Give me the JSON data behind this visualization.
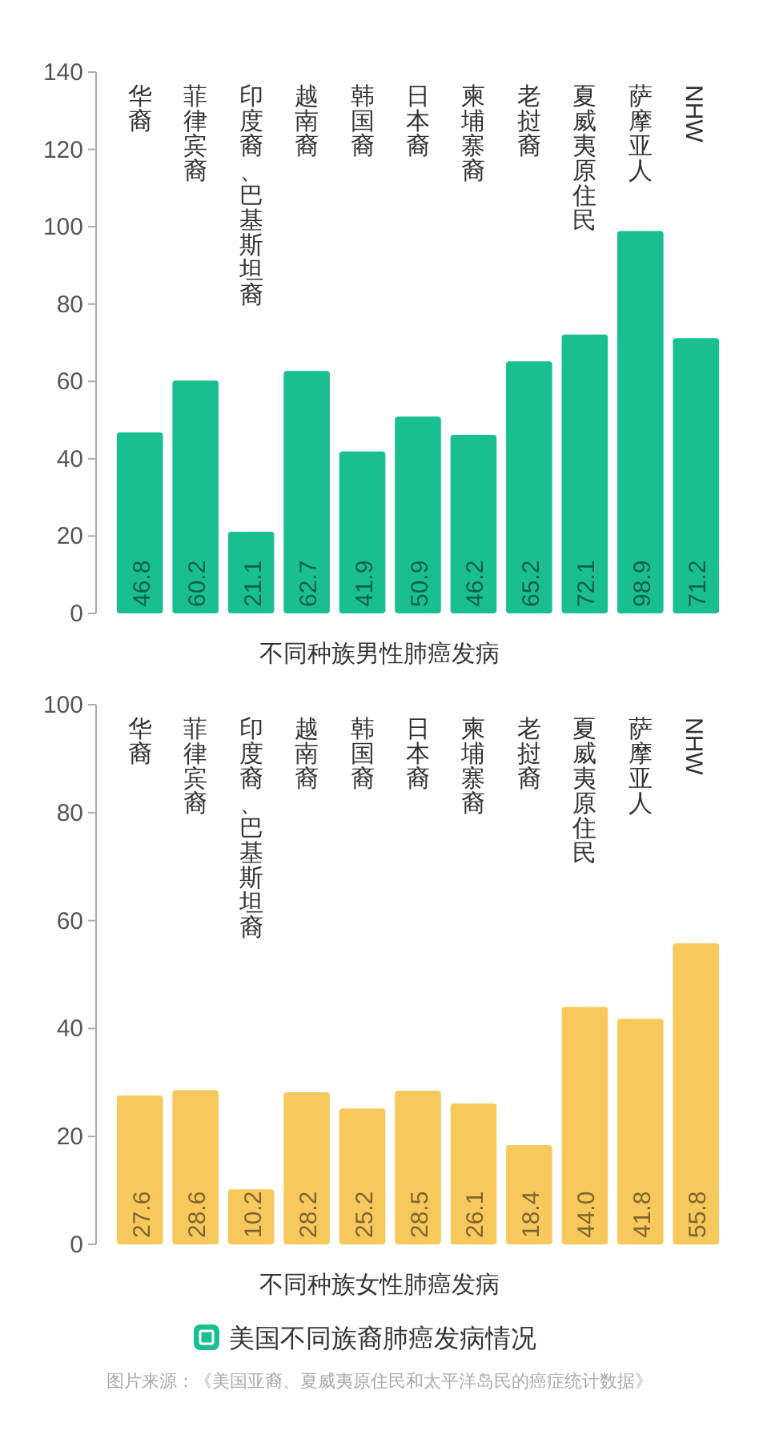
{
  "chart_data": [
    {
      "type": "bar",
      "categories": [
        "华裔",
        "菲律宾裔",
        "印度裔、巴基斯坦裔",
        "越南裔",
        "韩国裔",
        "日本裔",
        "柬埔寨裔",
        "老挝裔",
        "夏威夷原住民",
        "萨摩亚人",
        "NHW"
      ],
      "values": [
        46.8,
        60.2,
        21.1,
        62.7,
        41.9,
        50.9,
        46.2,
        65.2,
        72.1,
        98.9,
        71.2
      ],
      "color": "#1abf91",
      "ylim": [
        0,
        140
      ],
      "yticks": [
        0,
        20,
        40,
        60,
        80,
        100,
        120,
        140
      ],
      "xlabel": "不同种族男性肺癌发病",
      "data_labels": true
    },
    {
      "type": "bar",
      "categories": [
        "华裔",
        "菲律宾裔",
        "印度裔、巴基斯坦裔",
        "越南裔",
        "韩国裔",
        "日本裔",
        "柬埔寨裔",
        "老挝裔",
        "夏威夷原住民",
        "萨摩亚人",
        "NHW"
      ],
      "values": [
        27.6,
        28.6,
        10.2,
        28.2,
        25.2,
        28.5,
        26.1,
        18.4,
        44.0,
        41.8,
        55.8
      ],
      "value_labels": [
        "27.6",
        "28.6",
        "10.2",
        "28.2",
        "25.2",
        "28.5",
        "26.1",
        "18.4",
        "44.0",
        "41.8",
        "55.8"
      ],
      "color": "#f7c85c",
      "ylim": [
        0,
        100
      ],
      "yticks": [
        0,
        20,
        40,
        60,
        80,
        100
      ],
      "xlabel": "不同种族女性肺癌发病",
      "annotations": [
        "美国不同族裔肺癌发病情况",
        "图片来源：《美国亚裔、夏威夷原住民和太平洋岛民的癌症统计数据》"
      ]
    }
  ]
}
